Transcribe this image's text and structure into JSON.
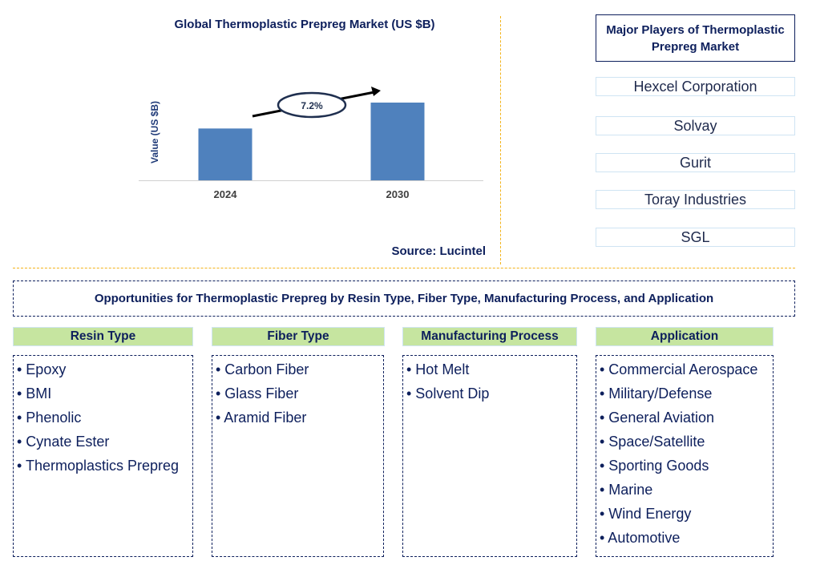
{
  "chart_data": {
    "type": "bar",
    "title": "Global Thermoplastic Prepreg Market (US $B)",
    "ylabel": "Value (US $B)",
    "xlabel": "",
    "categories": [
      "2024",
      "2030"
    ],
    "values": [
      1.0,
      1.5
    ],
    "ylim": [
      0,
      1.5
    ],
    "bar_color": "#4f81bd",
    "annotation": "7.2%",
    "grid": false
  },
  "source": "Source: Lucintel",
  "players": {
    "title": "Major Players of Thermoplastic Prepreg Market",
    "items": [
      "Hexcel Corporation",
      "Solvay",
      "Gurit",
      "Toray Industries",
      "SGL"
    ]
  },
  "opportunities": {
    "title": "Opportunities for Thermoplastic Prepreg by Resin Type, Fiber Type, Manufacturing Process, and Application",
    "categories": [
      {
        "label": "Resin Type",
        "items": [
          "• Epoxy",
          "• BMI",
          "• Phenolic",
          "• Cynate Ester",
          "• Thermoplastics Prepreg"
        ]
      },
      {
        "label": "Fiber Type",
        "items": [
          "• Carbon Fiber",
          "• Glass Fiber",
          "• Aramid Fiber"
        ]
      },
      {
        "label": "Manufacturing Process",
        "items": [
          "• Hot Melt",
          "• Solvent Dip"
        ]
      },
      {
        "label": "Application",
        "items": [
          "• Commercial Aerospace",
          "• Military/Defense",
          "• General Aviation",
          "• Space/Satellite",
          "• Sporting Goods",
          "• Marine",
          "• Wind Energy",
          "• Automotive"
        ]
      }
    ]
  },
  "colors": {
    "accent": "#0d1f5c",
    "category_bg": "#c6e5a0",
    "divider": "#f3b31b"
  }
}
